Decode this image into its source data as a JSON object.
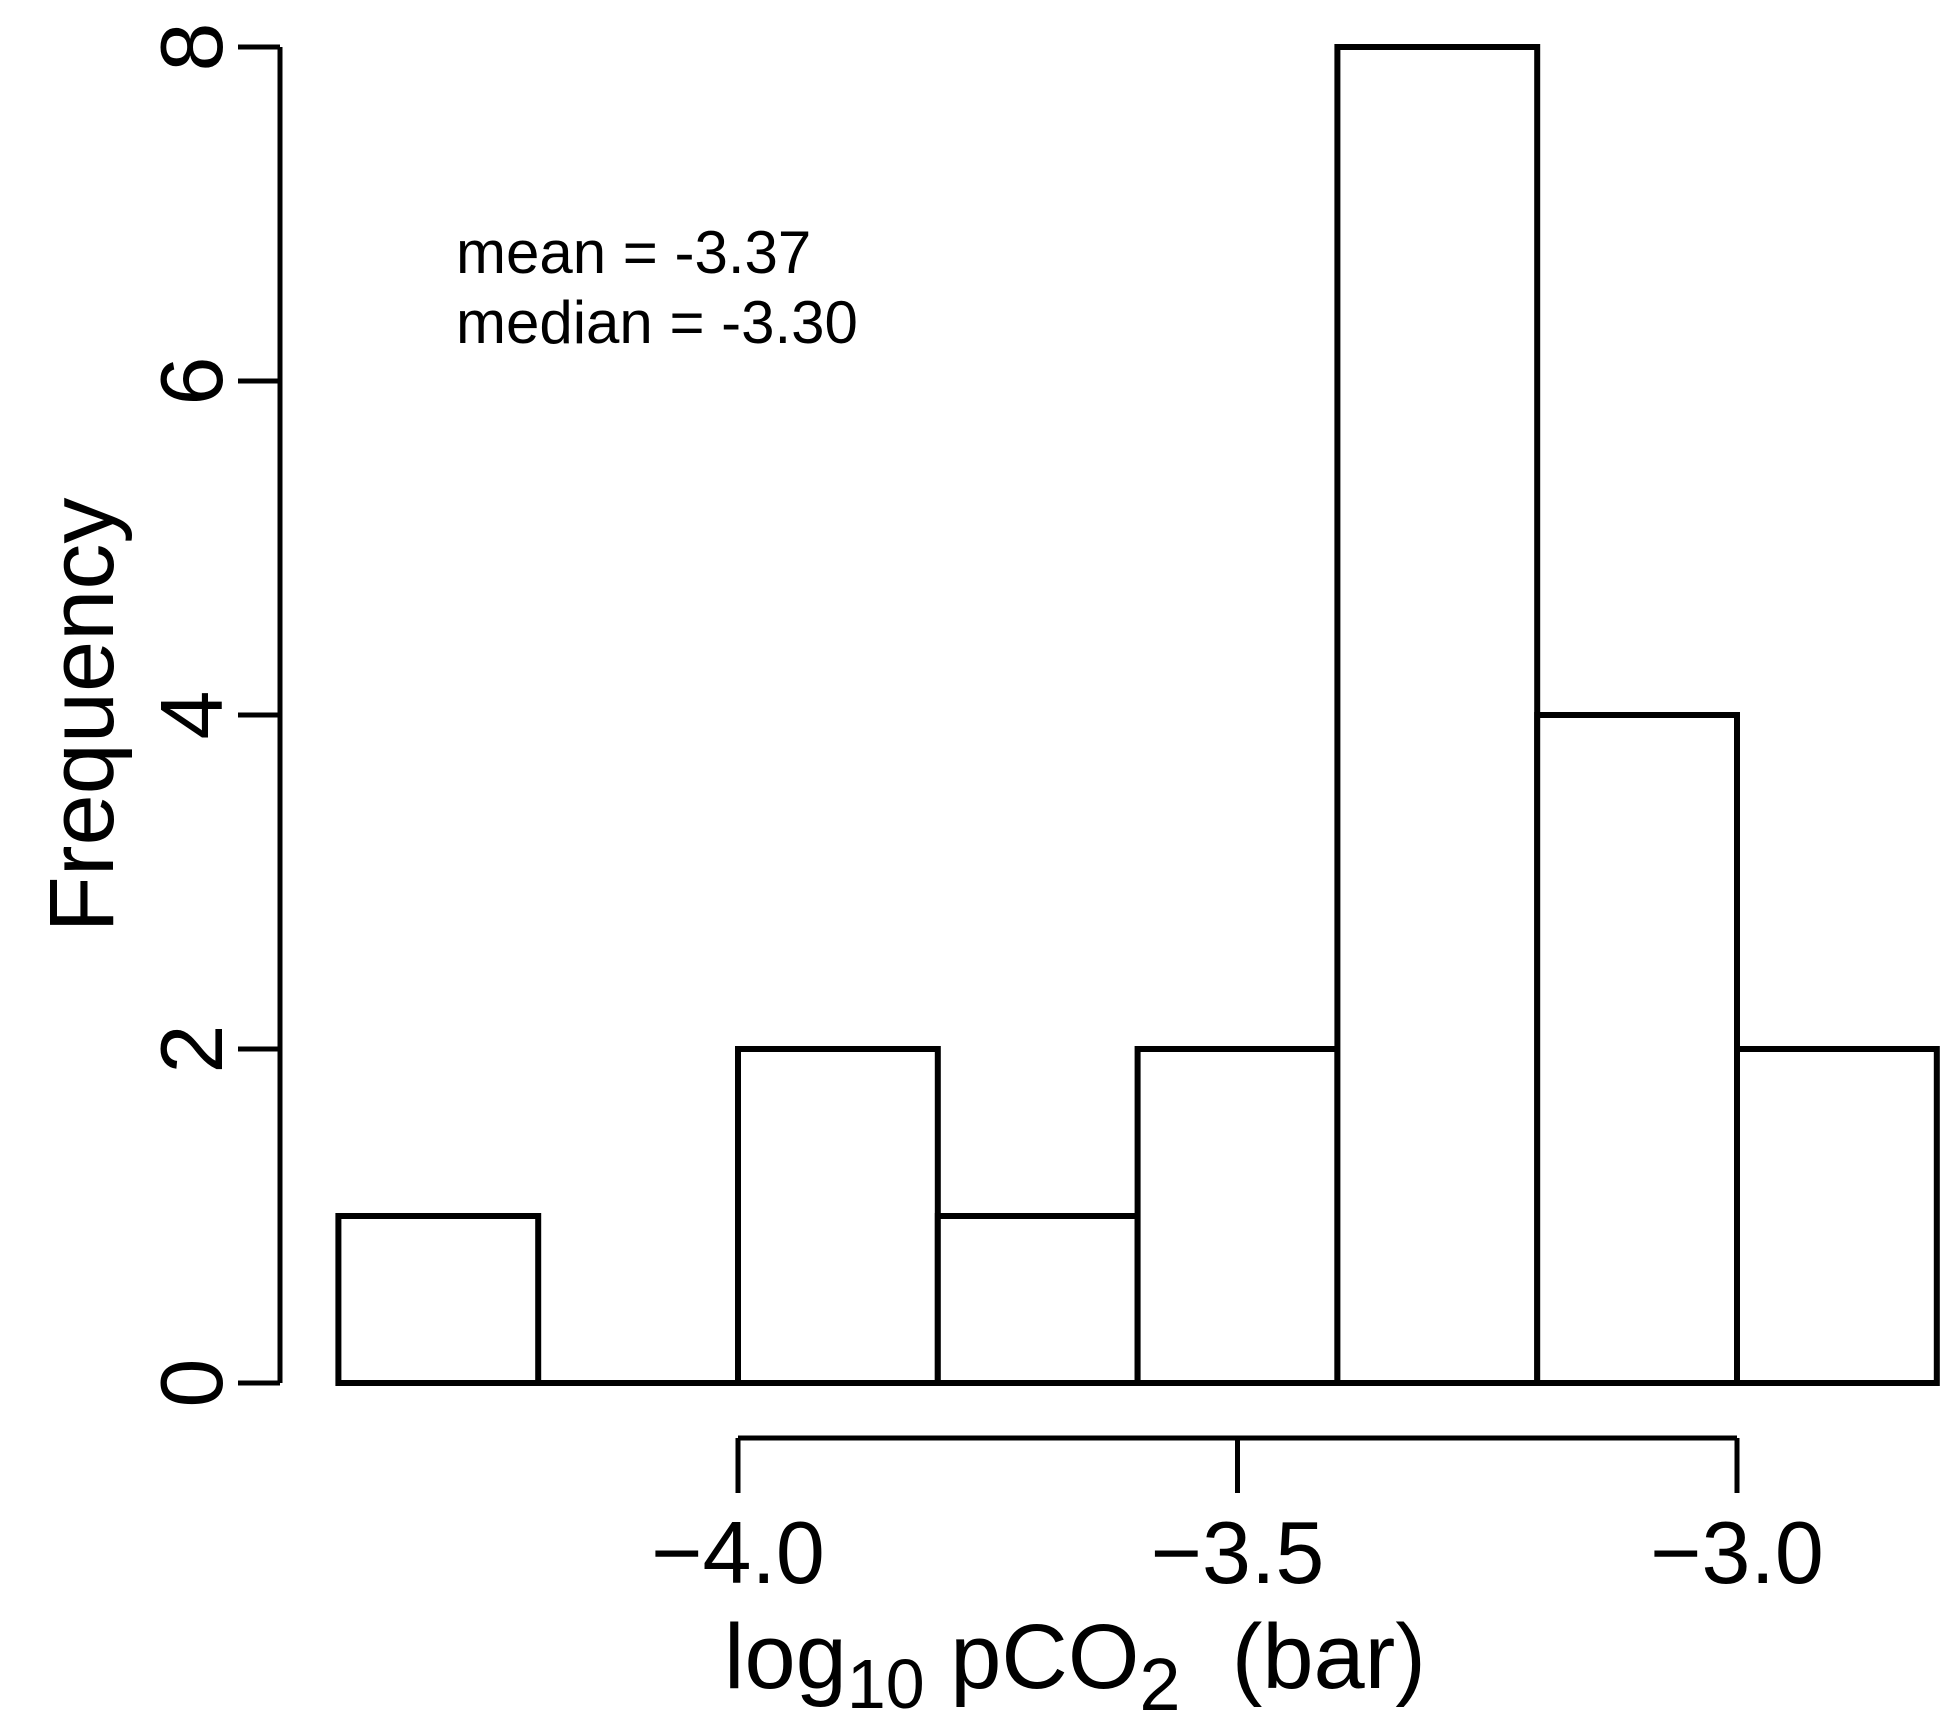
{
  "figure": {
    "background": "#ffffff",
    "stroke_color": "#000000",
    "bar_fill": "#ffffff"
  },
  "annotation": {
    "line1": "mean = -3.37",
    "line2": "median = -3.30"
  },
  "y_axis": {
    "title": "Frequency",
    "ticks": [
      {
        "value": 0,
        "label": "0"
      },
      {
        "value": 2,
        "label": "2"
      },
      {
        "value": 4,
        "label": "4"
      },
      {
        "value": 6,
        "label": "6"
      },
      {
        "value": 8,
        "label": "8"
      }
    ]
  },
  "x_axis": {
    "title_plain": "log10 pCO2 (bar)",
    "title_parts": {
      "base": "log",
      "base_sub": "10",
      "species": " pCO",
      "species_sub": "2",
      "unit": "  (bar)"
    },
    "ticks": [
      {
        "value": -4.0,
        "label": "−4.0"
      },
      {
        "value": -3.5,
        "label": "−3.5"
      },
      {
        "value": -3.0,
        "label": "−3.0"
      }
    ]
  },
  "chart_data": {
    "type": "bar",
    "subtype": "histogram",
    "title": "",
    "xlabel": "log10 pCO2 (bar)",
    "ylabel": "Frequency",
    "bin_edges": [
      -4.4,
      -4.2,
      -4.0,
      -3.8,
      -3.6,
      -3.4,
      -3.2,
      -3.0,
      -2.8
    ],
    "counts": [
      1,
      0,
      2,
      1,
      2,
      8,
      4,
      2
    ],
    "xlim": [
      -4.4,
      -2.8
    ],
    "ylim": [
      0,
      8
    ],
    "x_tick_values": [
      -4.0,
      -3.5,
      -3.0
    ],
    "y_tick_values": [
      0,
      2,
      4,
      6,
      8
    ],
    "grid": false,
    "legend": null,
    "annotations": [
      "mean = -3.37",
      "median = -3.30"
    ],
    "mean": -3.37,
    "median": -3.3,
    "bar_style": {
      "fill": "#ffffff",
      "stroke": "#000000"
    }
  }
}
